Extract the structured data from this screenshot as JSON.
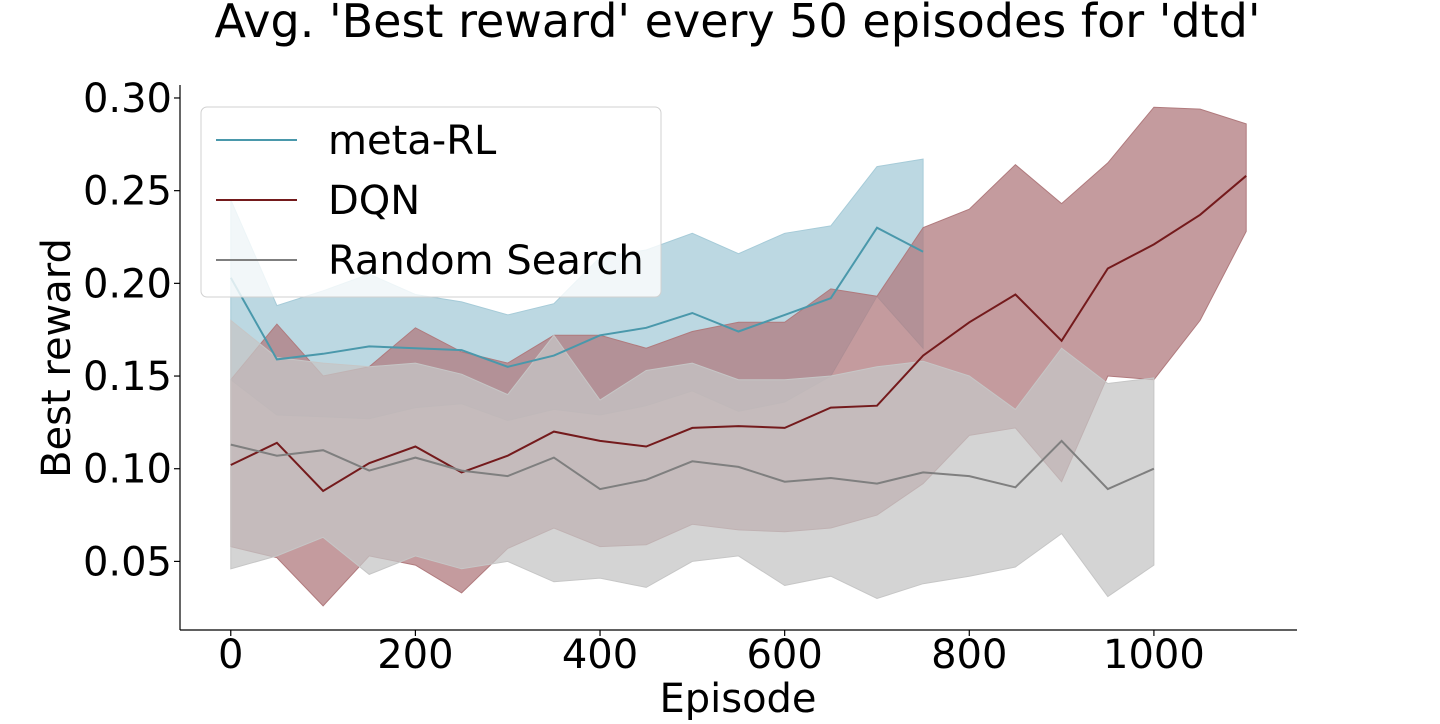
{
  "chart_data": {
    "type": "line",
    "title": "Avg. 'Best reward' every 50 episodes for 'dtd'",
    "xlabel": "Episode",
    "ylabel": "Best reward",
    "xlim": [
      -55,
      1155
    ],
    "ylim": [
      0.013,
      0.307
    ],
    "x_ticks": [
      0,
      200,
      400,
      600,
      800,
      1000
    ],
    "x_tick_labels": [
      "0",
      "200",
      "400",
      "600",
      "800",
      "1000"
    ],
    "y_ticks": [
      0.05,
      0.1,
      0.15,
      0.2,
      0.25,
      0.3
    ],
    "y_tick_labels": [
      "0.05",
      "0.10",
      "0.15",
      "0.20",
      "0.25",
      "0.30"
    ],
    "grid": false,
    "legend_position": "top-left",
    "series": [
      {
        "name": "meta-RL",
        "color": "#4a98ab",
        "band_color": "#a6cbd8",
        "x": [
          0,
          50,
          100,
          150,
          200,
          250,
          300,
          350,
          400,
          450,
          500,
          550,
          600,
          650,
          700,
          750
        ],
        "values": [
          0.203,
          0.159,
          0.162,
          0.166,
          0.165,
          0.164,
          0.155,
          0.161,
          0.172,
          0.176,
          0.184,
          0.174,
          0.183,
          0.192,
          0.23,
          0.217
        ],
        "lower": [
          0.148,
          0.129,
          0.128,
          0.127,
          0.133,
          0.135,
          0.126,
          0.132,
          0.129,
          0.134,
          0.142,
          0.131,
          0.136,
          0.15,
          0.193,
          0.165
        ],
        "upper": [
          0.245,
          0.188,
          0.196,
          0.205,
          0.194,
          0.19,
          0.183,
          0.189,
          0.214,
          0.218,
          0.227,
          0.216,
          0.227,
          0.231,
          0.263,
          0.267
        ]
      },
      {
        "name": "DQN",
        "color": "#741a1c",
        "band_color": "#b07a7d",
        "x": [
          0,
          50,
          100,
          150,
          200,
          250,
          300,
          350,
          400,
          450,
          500,
          550,
          600,
          650,
          700,
          750,
          800,
          850,
          900,
          950,
          1000,
          1050,
          1100
        ],
        "values": [
          0.102,
          0.114,
          0.088,
          0.103,
          0.112,
          0.098,
          0.107,
          0.12,
          0.115,
          0.112,
          0.122,
          0.123,
          0.122,
          0.133,
          0.134,
          0.161,
          0.179,
          0.194,
          0.169,
          0.208,
          0.221,
          0.237,
          0.258
        ],
        "lower": [
          0.058,
          0.052,
          0.026,
          0.053,
          0.048,
          0.033,
          0.057,
          0.068,
          0.058,
          0.059,
          0.07,
          0.067,
          0.066,
          0.068,
          0.075,
          0.092,
          0.118,
          0.122,
          0.093,
          0.15,
          0.148,
          0.18,
          0.228
        ],
        "upper": [
          0.148,
          0.178,
          0.15,
          0.155,
          0.176,
          0.163,
          0.157,
          0.172,
          0.172,
          0.165,
          0.174,
          0.179,
          0.179,
          0.197,
          0.193,
          0.23,
          0.24,
          0.264,
          0.243,
          0.265,
          0.295,
          0.294,
          0.286
        ]
      },
      {
        "name": "Random Search",
        "color": "#7f7f7f",
        "band_color": "#c6c6c6",
        "x": [
          0,
          50,
          100,
          150,
          200,
          250,
          300,
          350,
          400,
          450,
          500,
          550,
          600,
          650,
          700,
          750,
          800,
          850,
          900,
          950,
          1000
        ],
        "values": [
          0.113,
          0.107,
          0.11,
          0.099,
          0.106,
          0.099,
          0.096,
          0.106,
          0.089,
          0.094,
          0.104,
          0.101,
          0.093,
          0.095,
          0.092,
          0.098,
          0.096,
          0.09,
          0.115,
          0.089,
          0.1
        ],
        "lower": [
          0.046,
          0.053,
          0.063,
          0.043,
          0.053,
          0.046,
          0.05,
          0.039,
          0.041,
          0.036,
          0.05,
          0.053,
          0.037,
          0.042,
          0.03,
          0.038,
          0.042,
          0.047,
          0.065,
          0.031,
          0.048
        ],
        "upper": [
          0.18,
          0.16,
          0.157,
          0.155,
          0.157,
          0.151,
          0.14,
          0.172,
          0.137,
          0.153,
          0.157,
          0.148,
          0.148,
          0.15,
          0.155,
          0.158,
          0.15,
          0.132,
          0.165,
          0.146,
          0.149
        ]
      }
    ]
  }
}
